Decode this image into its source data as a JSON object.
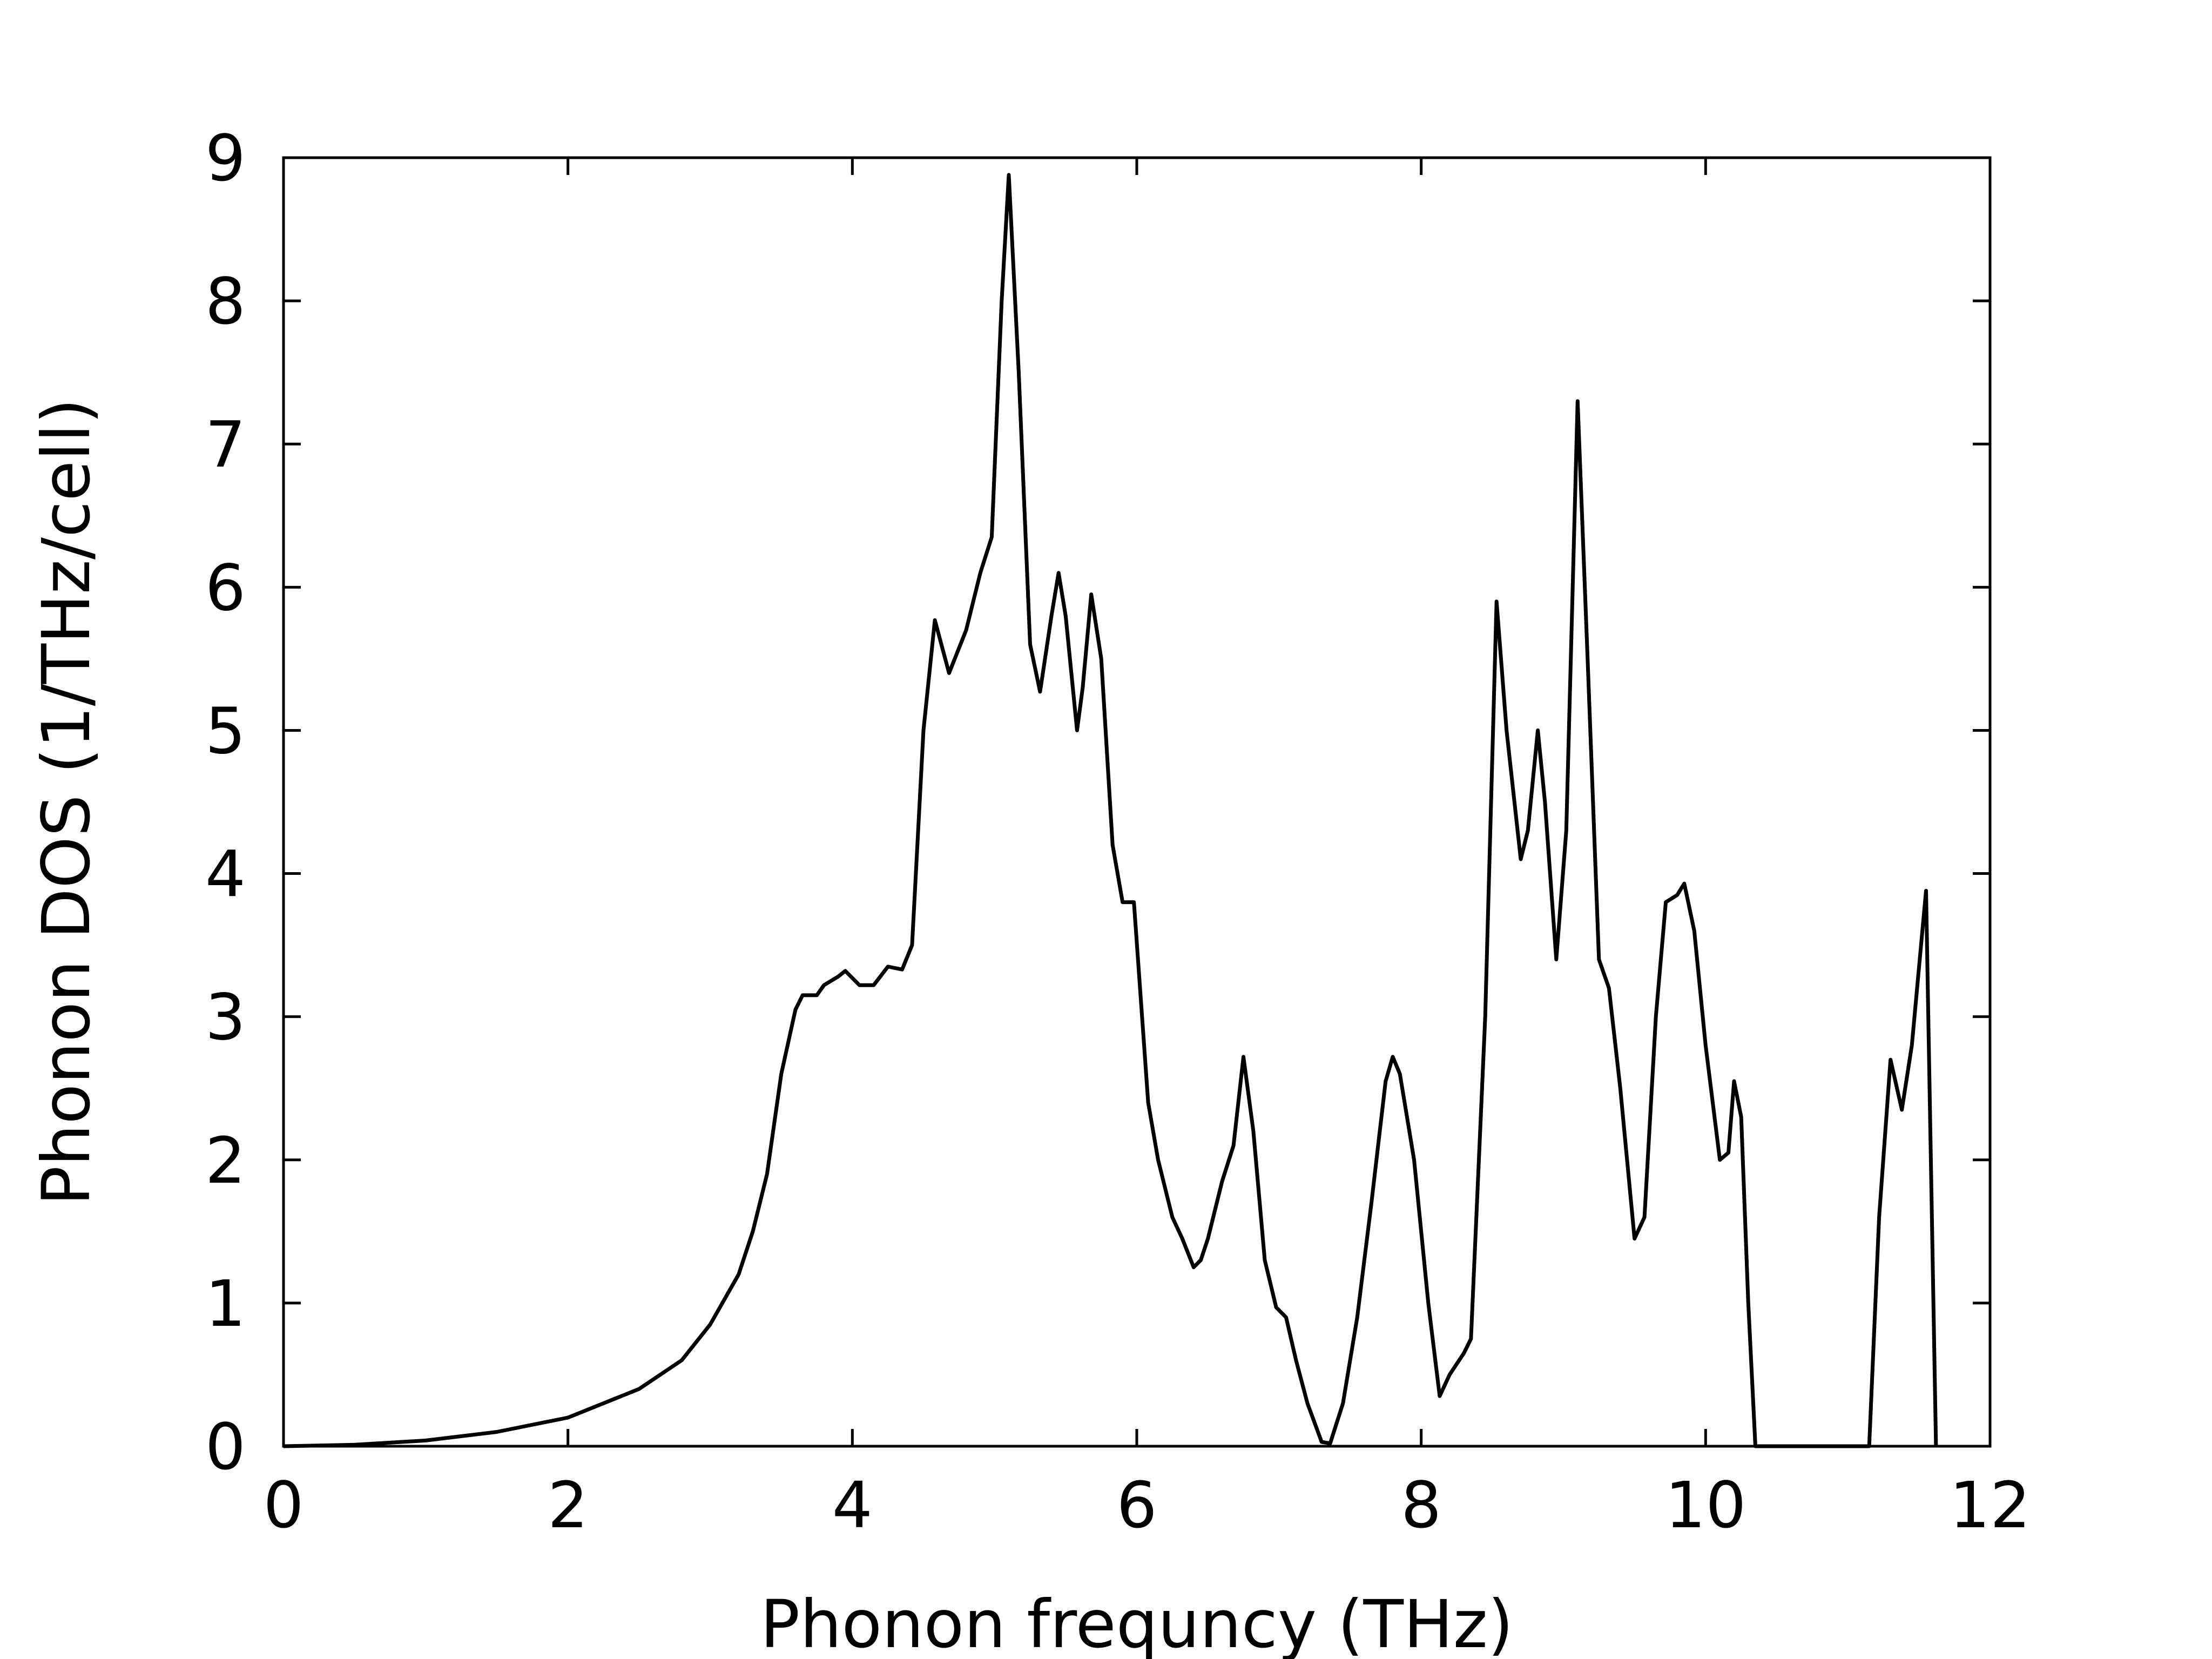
{
  "chart_data": {
    "type": "line",
    "x_label": "Phonon frequncy (THz)",
    "y_label": "Phonon DOS (1/THz/cell)",
    "color": "#000000",
    "x": [
      0,
      0.5,
      1,
      1.5,
      2,
      2.5,
      2.8,
      3.0,
      3.2,
      3.3,
      3.4,
      3.5,
      3.6,
      3.65,
      3.75,
      3.8,
      3.9,
      3.95,
      4.05,
      4.15,
      4.25,
      4.35,
      4.42,
      4.5,
      4.58,
      4.68,
      4.8,
      4.9,
      4.98,
      5.05,
      5.1,
      5.17,
      5.25,
      5.32,
      5.4,
      5.45,
      5.5,
      5.58,
      5.62,
      5.68,
      5.75,
      5.83,
      5.9,
      5.98,
      6.08,
      6.15,
      6.25,
      6.32,
      6.4,
      6.45,
      6.5,
      6.6,
      6.68,
      6.75,
      6.82,
      6.9,
      6.98,
      7.05,
      7.12,
      7.2,
      7.3,
      7.36,
      7.45,
      7.55,
      7.65,
      7.75,
      7.8,
      7.85,
      7.95,
      8.05,
      8.13,
      8.2,
      8.3,
      8.35,
      8.45,
      8.53,
      8.6,
      8.7,
      8.75,
      8.82,
      8.87,
      8.95,
      9.02,
      9.1,
      9.17,
      9.25,
      9.32,
      9.4,
      9.5,
      9.57,
      9.65,
      9.72,
      9.8,
      9.85,
      9.92,
      10.0,
      10.1,
      10.16,
      10.2,
      10.25,
      10.3,
      10.35,
      11.15,
      11.22,
      11.3,
      11.38,
      11.45,
      11.55,
      11.62
    ],
    "values": [
      0,
      0.01,
      0.04,
      0.1,
      0.2,
      0.4,
      0.6,
      0.85,
      1.2,
      1.5,
      1.9,
      2.6,
      3.05,
      3.15,
      3.15,
      3.22,
      3.28,
      3.32,
      3.22,
      3.22,
      3.35,
      3.33,
      3.5,
      5.0,
      5.77,
      5.4,
      5.7,
      6.1,
      6.35,
      8.0,
      8.88,
      7.5,
      5.6,
      5.27,
      5.8,
      6.1,
      5.8,
      5.0,
      5.3,
      5.95,
      5.5,
      4.2,
      3.8,
      3.8,
      2.4,
      2.0,
      1.6,
      1.45,
      1.25,
      1.3,
      1.45,
      1.85,
      2.1,
      2.72,
      2.2,
      1.3,
      0.97,
      0.9,
      0.6,
      0.3,
      0.03,
      0.02,
      0.3,
      0.9,
      1.7,
      2.55,
      2.72,
      2.6,
      2.0,
      1.0,
      0.35,
      0.5,
      0.65,
      0.75,
      3.0,
      5.9,
      5.0,
      4.1,
      4.3,
      5.0,
      4.5,
      3.4,
      4.3,
      7.3,
      5.5,
      3.4,
      3.2,
      2.5,
      1.45,
      1.6,
      3.0,
      3.8,
      3.85,
      3.93,
      3.6,
      2.8,
      2.0,
      2.05,
      2.55,
      2.3,
      1.0,
      0.0,
      0.0,
      1.6,
      2.7,
      2.35,
      2.8,
      3.88,
      0.0
    ],
    "xlim": [
      0,
      12
    ],
    "xticks": [
      0,
      2,
      4,
      6,
      8,
      10,
      12
    ],
    "ylim": [
      0,
      9
    ],
    "yticks": [
      0,
      1,
      2,
      3,
      4,
      5,
      6,
      7,
      8,
      9
    ],
    "mirror_ticks": true
  }
}
